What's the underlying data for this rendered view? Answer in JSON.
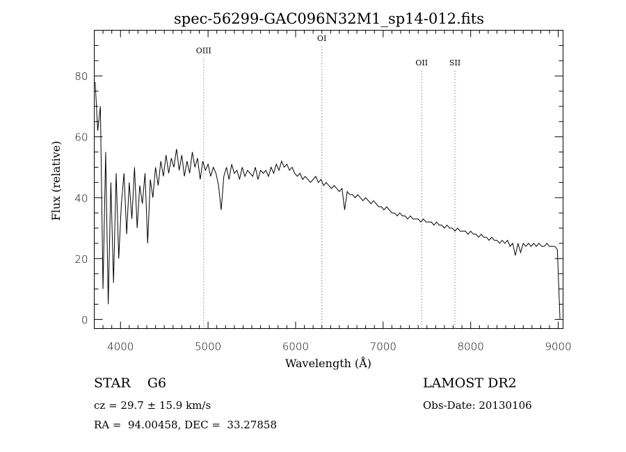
{
  "chart_data": {
    "type": "line",
    "title": "spec-56299-GAC096N32M1_sp14-012.fits",
    "xlabel": "Wavelength (Å)",
    "ylabel": "Flux (relative)",
    "xlim": [
      3700,
      9055
    ],
    "ylim": [
      -3,
      95
    ],
    "xticks": [
      4000,
      5000,
      6000,
      7000,
      8000,
      9000
    ],
    "xtick_labels": [
      "4000",
      "5000",
      "6000",
      "7000",
      "8000",
      "9000"
    ],
    "yticks": [
      0,
      20,
      40,
      60,
      80
    ],
    "ytick_labels": [
      "0",
      "20",
      "40",
      "60",
      "80"
    ],
    "grid": false,
    "series": [
      {
        "name": "spectrum",
        "x_start": 3710,
        "x_step": 30,
        "values": [
          78,
          62,
          70,
          10,
          55,
          5,
          45,
          12,
          48,
          20,
          38,
          48,
          28,
          45,
          33,
          50,
          30,
          44,
          38,
          48,
          25,
          46,
          40,
          50,
          44,
          52,
          47,
          54,
          48,
          53,
          50,
          56,
          49,
          54,
          47,
          52,
          48,
          55,
          50,
          53,
          46,
          52,
          49,
          51,
          47,
          50,
          48,
          44,
          36,
          47,
          50,
          46,
          51,
          48,
          49,
          46,
          50,
          47,
          49,
          48,
          47,
          50,
          46,
          49,
          48,
          49,
          47,
          50,
          48,
          51,
          49,
          52,
          50,
          51,
          49,
          50,
          48,
          47,
          48,
          46,
          47,
          46,
          45,
          46,
          47,
          45,
          46,
          44,
          45,
          44,
          43,
          44,
          43,
          42,
          43,
          36,
          42,
          41,
          41,
          40,
          41,
          40,
          39,
          40,
          39,
          38,
          39,
          38,
          37,
          37,
          36,
          37,
          36,
          35,
          35,
          34,
          35,
          34,
          34,
          33,
          34,
          33,
          33,
          33,
          32,
          33,
          32,
          32,
          32,
          31,
          32,
          31,
          31,
          30,
          31,
          30,
          30,
          29,
          30,
          29,
          29,
          29,
          28,
          29,
          28,
          28,
          27,
          28,
          27,
          27,
          26,
          27,
          26,
          26,
          25,
          26,
          25,
          26,
          24,
          25,
          21,
          25,
          22,
          25,
          24,
          25,
          24,
          25,
          24,
          25,
          24,
          24,
          25,
          24,
          24,
          24,
          23,
          0
        ]
      }
    ],
    "lines": [
      {
        "label": "OIII",
        "wavelength": 4950,
        "label_y": 87
      },
      {
        "label": "OI",
        "wavelength": 6300,
        "label_y": 91
      },
      {
        "label": "OII",
        "wavelength": 7440,
        "label_y": 83
      },
      {
        "label": "SII",
        "wavelength": 7820,
        "label_y": 83
      }
    ],
    "line_color": "#8b3a3a"
  },
  "info": {
    "class": "STAR    G6",
    "cz": "cz = 29.7 ± 15.9 km/s",
    "radec": "RA =  94.00458, DEC =  33.27858",
    "survey": "LAMOST DR2",
    "obs_date": "Obs-Date: 20130106"
  }
}
